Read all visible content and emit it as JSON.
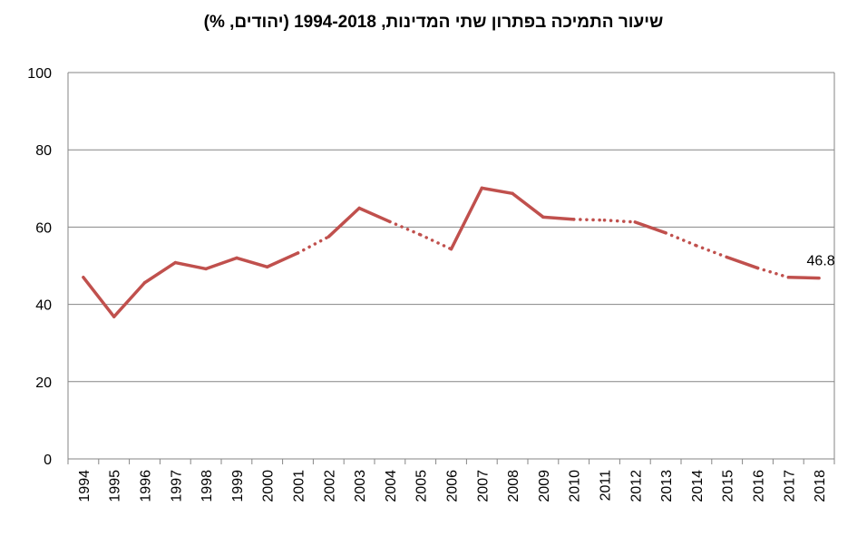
{
  "chart_data": {
    "type": "line",
    "title": "שיעור התמיכה בפתרון שתי המדינות, 1994-2018 (יהודים, %)",
    "x": [
      "1994",
      "1995",
      "1996",
      "1997",
      "1998",
      "1999",
      "2000",
      "2001",
      "2002",
      "2003",
      "2004",
      "2005",
      "2006",
      "2007",
      "2008",
      "2009",
      "2010",
      "2011",
      "2012",
      "2013",
      "2014",
      "2015",
      "2016",
      "2017",
      "2018"
    ],
    "series": [
      {
        "values": [
          47,
          36.8,
          45.6,
          50.8,
          49.2,
          52,
          49.7,
          53.3,
          57.5,
          64.9,
          61.4,
          58,
          54.3,
          70.1,
          68.7,
          62.6,
          62,
          61.8,
          61.3,
          58.5,
          55.2,
          52.2,
          49.4,
          47,
          46.8
        ],
        "segment_styles": [
          "solid",
          "solid",
          "solid",
          "solid",
          "solid",
          "solid",
          "solid",
          "dotted",
          "solid",
          "solid",
          "dotted",
          "dotted",
          "solid",
          "solid",
          "solid",
          "solid",
          "dotted",
          "dotted",
          "solid",
          "dotted",
          "dotted",
          "solid",
          "dotted",
          "solid"
        ],
        "color": "#C0504D"
      }
    ],
    "ylim": [
      0,
      100
    ],
    "yticks": [
      "0",
      "20",
      "40",
      "60",
      "80",
      "100"
    ],
    "grid": true,
    "annotations": [
      {
        "index": 24,
        "text": "46.8"
      }
    ]
  }
}
